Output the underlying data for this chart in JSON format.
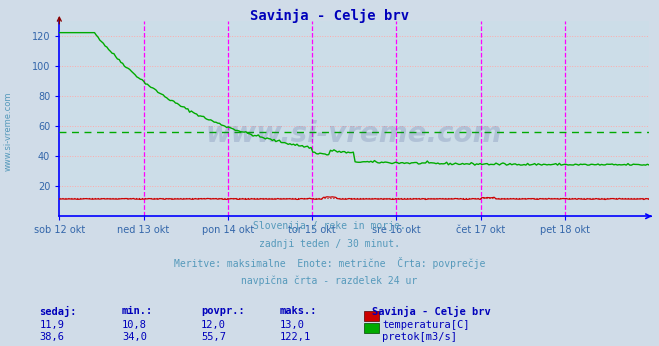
{
  "title": "Savinja - Celje brv",
  "title_color": "#0000bb",
  "bg_color": "#d0dce8",
  "plot_bg_color": "#ccdde8",
  "grid_color_h": "#ffaaaa",
  "vline_color": "#ff00ff",
  "vline_dashed_color": "#888888",
  "axis_color": "#0000ff",
  "tick_color": "#3366aa",
  "watermark_text": "www.si-vreme.com",
  "watermark_color": "#334488",
  "watermark_alpha": 0.18,
  "subtitle_lines": [
    "Slovenija / reke in morje.",
    "zadnji teden / 30 minut.",
    "Meritve: maksimalne  Enote: metrične  Črta: povprečje",
    "navpična črta - razdelek 24 ur"
  ],
  "subtitle_color": "#5599bb",
  "subtitle_fontsize": 7.0,
  "yticks": [
    20,
    40,
    60,
    80,
    100,
    120
  ],
  "ylim": [
    0,
    130
  ],
  "n_days": 7,
  "day_labels": [
    "sob 12 okt",
    "ned 13 okt",
    "pon 14 okt",
    "tor 15 okt",
    "sre 16 okt",
    "čet 17 okt",
    "pet 18 okt"
  ],
  "temp_avg": 12.0,
  "temp_color": "#cc0000",
  "flow_avg": 55.7,
  "flow_color": "#00aa00",
  "legend_title": "Savinja - Celje brv",
  "legend_color": "#0000bb",
  "table_header": [
    "sedaj:",
    "min.:",
    "povpr.:",
    "maks.:"
  ],
  "table_color": "#0000bb",
  "table_fontsize": 7.5,
  "temp_vals": [
    "11,9",
    "10,8",
    "12,0",
    "13,0"
  ],
  "flow_vals": [
    "38,6",
    "34,0",
    "55,7",
    "122,1"
  ],
  "sidebar_text": "www.si-vreme.com",
  "sidebar_color": "#5599bb"
}
